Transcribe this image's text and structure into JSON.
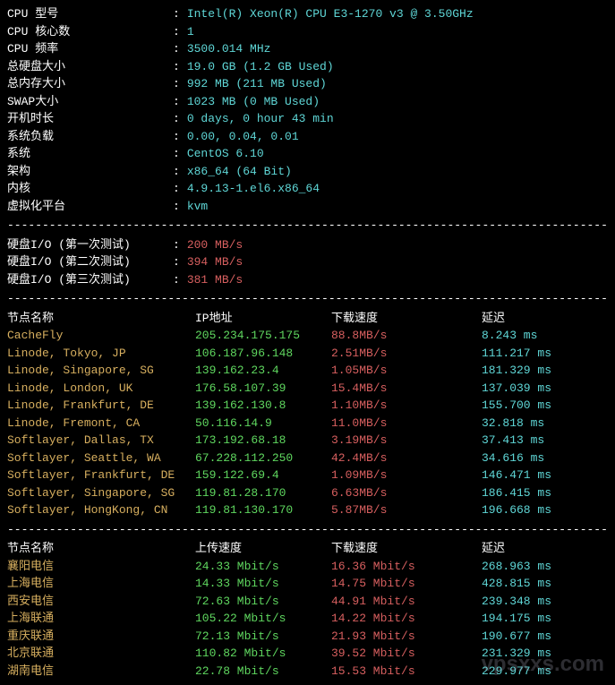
{
  "sysinfo": [
    {
      "label": "CPU 型号",
      "value": "Intel(R) Xeon(R) CPU E3-1270 v3 @ 3.50GHz"
    },
    {
      "label": "CPU 核心数",
      "value": "1"
    },
    {
      "label": "CPU 频率",
      "value": "3500.014 MHz"
    },
    {
      "label": "总硬盘大小",
      "value": "19.0 GB (1.2 GB Used)"
    },
    {
      "label": "总内存大小",
      "value": "992 MB (211 MB Used)"
    },
    {
      "label": "SWAP大小",
      "value": "1023 MB (0 MB Used)"
    },
    {
      "label": "开机时长",
      "value": "0 days, 0 hour 43 min"
    },
    {
      "label": "系统负载",
      "value": "0.00, 0.04, 0.01"
    },
    {
      "label": "系统",
      "value": "CentOS 6.10"
    },
    {
      "label": "架构",
      "value": "x86_64 (64 Bit)"
    },
    {
      "label": "内核",
      "value": "4.9.13-1.el6.x86_64"
    },
    {
      "label": "虚拟化平台",
      "value": "kvm"
    }
  ],
  "diskio": [
    {
      "label": "硬盘I/O (第一次测试)",
      "value": "200 MB/s"
    },
    {
      "label": "硬盘I/O (第二次测试)",
      "value": "394 MB/s"
    },
    {
      "label": "硬盘I/O (第三次测试)",
      "value": "381 MB/s"
    }
  ],
  "headers1": {
    "name": "节点名称",
    "ip": "IP地址",
    "down": "下载速度",
    "lat": "延迟"
  },
  "intl": [
    {
      "name": "CacheFly",
      "ip": "205.234.175.175",
      "speed": "88.8MB/s",
      "lat": "8.243 ms"
    },
    {
      "name": "Linode, Tokyo, JP",
      "ip": "106.187.96.148",
      "speed": "2.51MB/s",
      "lat": "111.217 ms"
    },
    {
      "name": "Linode, Singapore, SG",
      "ip": "139.162.23.4",
      "speed": "1.05MB/s",
      "lat": "181.329 ms"
    },
    {
      "name": "Linode, London, UK",
      "ip": "176.58.107.39",
      "speed": "15.4MB/s",
      "lat": "137.039 ms"
    },
    {
      "name": "Linode, Frankfurt, DE",
      "ip": "139.162.130.8",
      "speed": "1.10MB/s",
      "lat": "155.700 ms"
    },
    {
      "name": "Linode, Fremont, CA",
      "ip": "50.116.14.9",
      "speed": "11.0MB/s",
      "lat": "32.818 ms"
    },
    {
      "name": "Softlayer, Dallas, TX",
      "ip": "173.192.68.18",
      "speed": "3.19MB/s",
      "lat": "37.413 ms"
    },
    {
      "name": "Softlayer, Seattle, WA",
      "ip": "67.228.112.250",
      "speed": "42.4MB/s",
      "lat": "34.616 ms"
    },
    {
      "name": "Softlayer, Frankfurt, DE",
      "ip": "159.122.69.4",
      "speed": "1.09MB/s",
      "lat": "146.471 ms"
    },
    {
      "name": "Softlayer, Singapore, SG",
      "ip": "119.81.28.170",
      "speed": "6.63MB/s",
      "lat": "186.415 ms"
    },
    {
      "name": "Softlayer, HongKong, CN",
      "ip": "119.81.130.170",
      "speed": "5.87MB/s",
      "lat": "196.668 ms"
    }
  ],
  "headers2": {
    "name": "节点名称",
    "up": "上传速度",
    "down": "下载速度",
    "lat": "延迟"
  },
  "china": [
    {
      "name": "襄阳电信",
      "up": "24.33 Mbit/s",
      "down": "16.36 Mbit/s",
      "lat": "268.963 ms"
    },
    {
      "name": "上海电信",
      "up": "14.33 Mbit/s",
      "down": "14.75 Mbit/s",
      "lat": "428.815 ms"
    },
    {
      "name": "西安电信",
      "up": "72.63 Mbit/s",
      "down": "44.91 Mbit/s",
      "lat": "239.348 ms"
    },
    {
      "name": "上海联通",
      "up": "105.22 Mbit/s",
      "down": "14.22 Mbit/s",
      "lat": "194.175 ms"
    },
    {
      "name": "重庆联通",
      "up": "72.13 Mbit/s",
      "down": "21.93 Mbit/s",
      "lat": "190.677 ms"
    },
    {
      "name": "北京联通",
      "up": "110.82 Mbit/s",
      "down": "39.52 Mbit/s",
      "lat": "231.329 ms"
    },
    {
      "name": "湖南电信",
      "up": "22.78 Mbit/s",
      "down": "15.53 Mbit/s",
      "lat": "229.977 ms"
    }
  ],
  "watermark": "vpsxxs.com",
  "divider_char": "-"
}
